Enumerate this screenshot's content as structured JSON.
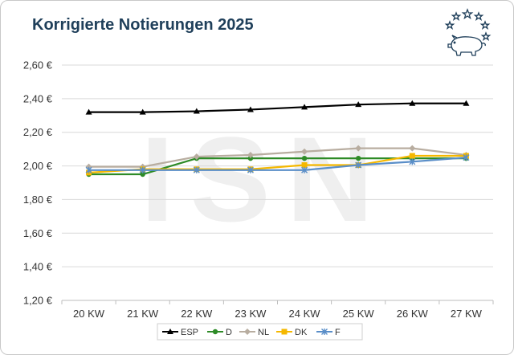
{
  "header": {
    "title": "Korrigierte Notierungen 2025",
    "logo_icon": "eu-stars-pig-logo"
  },
  "watermark": {
    "text": "ISN"
  },
  "chart_data": {
    "type": "line",
    "title": "Korrigierte Notierungen 2025",
    "xlabel": "",
    "ylabel": "",
    "categories": [
      "20 KW",
      "21 KW",
      "22 KW",
      "23 KW",
      "24 KW",
      "25 KW",
      "26 KW",
      "27 KW"
    ],
    "ylim": [
      1.2,
      2.6
    ],
    "yticks": [
      1.2,
      1.4,
      1.6,
      1.8,
      2.0,
      2.2,
      2.4,
      2.6
    ],
    "ytick_labels": [
      "1,20 €",
      "1,40 €",
      "1,60 €",
      "1,80 €",
      "2,00 €",
      "2,20 €",
      "2,40 €",
      "2,60 €"
    ],
    "grid": "horizontal",
    "legend_position": "bottom",
    "series": [
      {
        "name": "ESP",
        "color": "#000000",
        "marker": "triangle",
        "values": [
          2.32,
          2.32,
          2.325,
          2.335,
          2.35,
          2.365,
          2.372,
          2.372
        ]
      },
      {
        "name": "D",
        "color": "#2e8b27",
        "marker": "circle",
        "values": [
          1.95,
          1.95,
          2.045,
          2.045,
          2.045,
          2.045,
          2.045,
          2.045
        ]
      },
      {
        "name": "NL",
        "color": "#b8ada0",
        "marker": "diamond",
        "values": [
          1.995,
          1.995,
          2.055,
          2.065,
          2.085,
          2.105,
          2.105,
          2.065
        ]
      },
      {
        "name": "DK",
        "color": "#f5b800",
        "marker": "square",
        "values": [
          1.96,
          1.98,
          1.98,
          1.98,
          2.005,
          2.005,
          2.06,
          2.06
        ]
      },
      {
        "name": "F",
        "color": "#5a8ec8",
        "marker": "star",
        "values": [
          1.975,
          1.975,
          1.975,
          1.975,
          1.975,
          2.005,
          2.025,
          2.05
        ]
      }
    ]
  }
}
